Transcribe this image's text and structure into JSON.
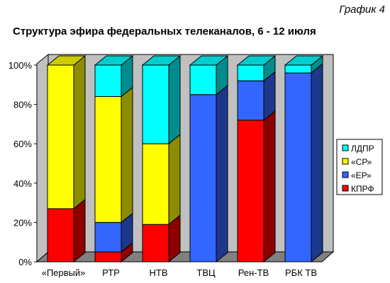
{
  "header": {
    "graph_label": "График 4",
    "title": "Структура эфира федеральных телеканалов, 6 - 12 июля"
  },
  "chart_data": {
    "type": "bar",
    "stacked": true,
    "percent_stacked": true,
    "three_d": true,
    "categories": [
      "«Первый»",
      "РТР",
      "НТВ",
      "ТВЦ",
      "Рен-ТВ",
      "РБК ТВ"
    ],
    "series": [
      {
        "name": "КПРФ",
        "color": "#ff0000",
        "values": [
          27,
          5,
          19,
          0,
          72,
          0
        ]
      },
      {
        "name": "«ЕР»",
        "color": "#3366ff",
        "values": [
          0,
          15,
          0,
          85,
          20,
          96
        ]
      },
      {
        "name": "«СР»",
        "color": "#ffff00",
        "values": [
          73,
          64,
          41,
          0,
          0,
          0
        ]
      },
      {
        "name": "ЛДПР",
        "color": "#00ffff",
        "values": [
          0,
          16,
          40,
          15,
          8,
          4
        ]
      }
    ],
    "legend_order": [
      "ЛДПР",
      "«СР»",
      "«ЕР»",
      "КПРФ"
    ],
    "y_ticks": [
      "0%",
      "20%",
      "40%",
      "60%",
      "80%",
      "100%"
    ],
    "ylim": [
      0,
      100
    ],
    "grid": false,
    "legend_position": "right"
  }
}
